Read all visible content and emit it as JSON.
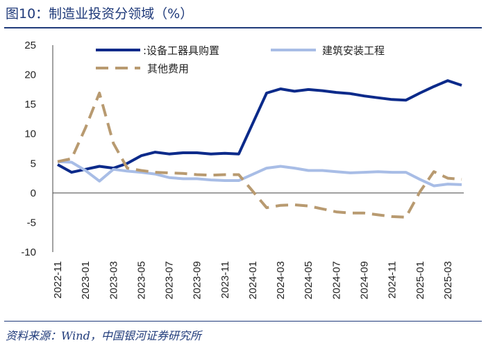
{
  "title": "图10：制造业投资分领域（%）",
  "source": "资料来源：Wind，中国银河证券研究所",
  "colors": {
    "equipment": "#0b2a8a",
    "construction": "#a8bde6",
    "other": "#b89a70",
    "text": "#1f3a7a",
    "axis": "#444444"
  },
  "chart_data": {
    "type": "line",
    "title": "制造业投资分领域（%）",
    "xlabel": "",
    "ylabel": "",
    "ylim": [
      -10,
      25
    ],
    "yticks": [
      25,
      20,
      15,
      10,
      5,
      0,
      -5,
      -10
    ],
    "x": [
      "2022-11",
      "2022-12",
      "2023-01",
      "2023-02",
      "2023-03",
      "2023-04",
      "2023-05",
      "2023-06",
      "2023-07",
      "2023-08",
      "2023-09",
      "2023-10",
      "2023-11",
      "2023-12",
      "2024-01",
      "2024-02",
      "2024-03",
      "2024-04",
      "2024-05",
      "2024-06",
      "2024-07",
      "2024-08",
      "2024-09",
      "2024-10",
      "2024-11",
      "2024-12",
      "2025-01",
      "2025-02",
      "2025-03",
      "2025-04"
    ],
    "xtick_labels": [
      "2022-11",
      "2023-01",
      "2023-03",
      "2023-05",
      "2023-07",
      "2023-09",
      "2023-11",
      "2024-01",
      "2024-03",
      "2024-05",
      "2024-07",
      "2024-09",
      "2024-11",
      "2025-01",
      "2025-03"
    ],
    "legend_position": "top",
    "series": [
      {
        "name": ":设备工器具购置",
        "style": "solid",
        "color_key": "equipment",
        "values": [
          4.8,
          3.5,
          4.0,
          4.5,
          4.2,
          5.0,
          6.3,
          6.9,
          6.6,
          6.8,
          6.8,
          6.6,
          6.7,
          6.6,
          null,
          16.9,
          17.6,
          17.2,
          17.5,
          17.3,
          17.0,
          16.8,
          16.4,
          16.1,
          15.8,
          15.7,
          16.9,
          18.0,
          19.0,
          18.2
        ]
      },
      {
        "name": "建筑安装工程",
        "style": "solid",
        "color_key": "construction",
        "values": [
          5.3,
          5.2,
          3.8,
          2.0,
          4.0,
          3.7,
          3.5,
          3.2,
          2.6,
          2.4,
          2.4,
          2.2,
          2.1,
          2.1,
          null,
          4.2,
          4.5,
          4.2,
          3.8,
          3.8,
          3.6,
          3.4,
          3.5,
          3.6,
          3.5,
          3.5,
          2.3,
          1.2,
          1.5,
          1.4
        ]
      },
      {
        "name": "其他费用",
        "style": "dashed",
        "color_key": "other",
        "values": [
          5.3,
          5.8,
          11.0,
          16.9,
          8.4,
          4.2,
          3.8,
          3.5,
          3.4,
          3.3,
          3.1,
          3.0,
          3.1,
          3.1,
          null,
          -2.5,
          -2.1,
          -2.0,
          -2.2,
          -2.7,
          -3.2,
          -3.4,
          -3.4,
          -3.7,
          -4.0,
          -4.1,
          0.2,
          3.6,
          2.5,
          2.3
        ]
      }
    ]
  }
}
